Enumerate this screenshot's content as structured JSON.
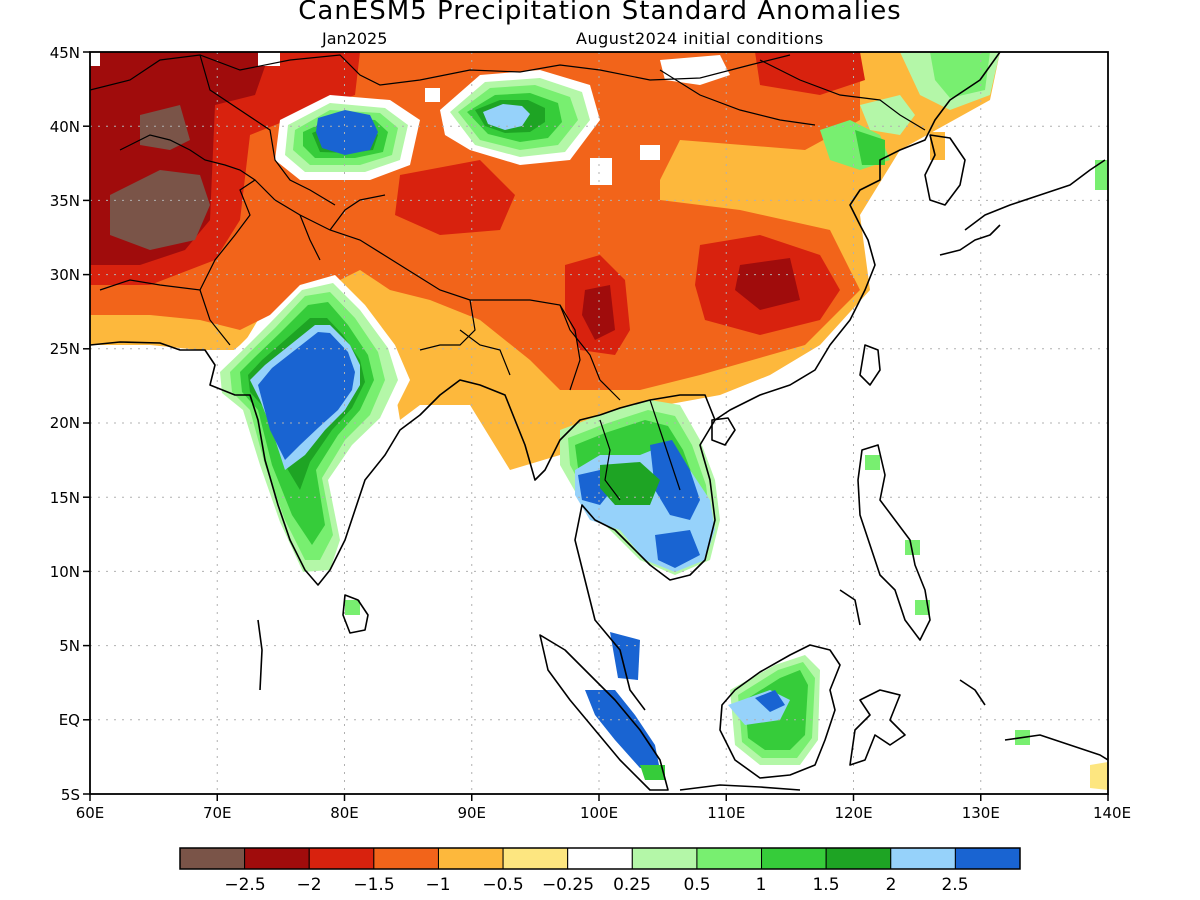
{
  "title": "CanESM5 Precipitation Standard Anomalies",
  "subtitle_left": "Jan2025",
  "subtitle_right": "August2024 initial conditions",
  "map": {
    "lon_ticks": [
      "60E",
      "70E",
      "80E",
      "90E",
      "100E",
      "110E",
      "120E",
      "130E",
      "140E"
    ],
    "lat_ticks": [
      "45N",
      "40N",
      "35N",
      "30N",
      "25N",
      "20N",
      "15N",
      "10N",
      "5N",
      "EQ",
      "5S"
    ],
    "lon_range": [
      60,
      140
    ],
    "lat_range": [
      -5,
      45
    ],
    "gridlines": true
  },
  "colorbar": {
    "colors": [
      "#7a5448",
      "#a00c0c",
      "#d8220e",
      "#f2641a",
      "#fdb83c",
      "#fde680",
      "#ffffff",
      "#b4f7a8",
      "#78ef70",
      "#36cc3a",
      "#1ea424",
      "#96d2fa",
      "#1964d2"
    ],
    "labels": [
      "−2.5",
      "−2",
      "−1.5",
      "−1",
      "−0.5",
      "−0.25",
      "0.25",
      "0.5",
      "1",
      "1.5",
      "2",
      "2.5"
    ]
  }
}
